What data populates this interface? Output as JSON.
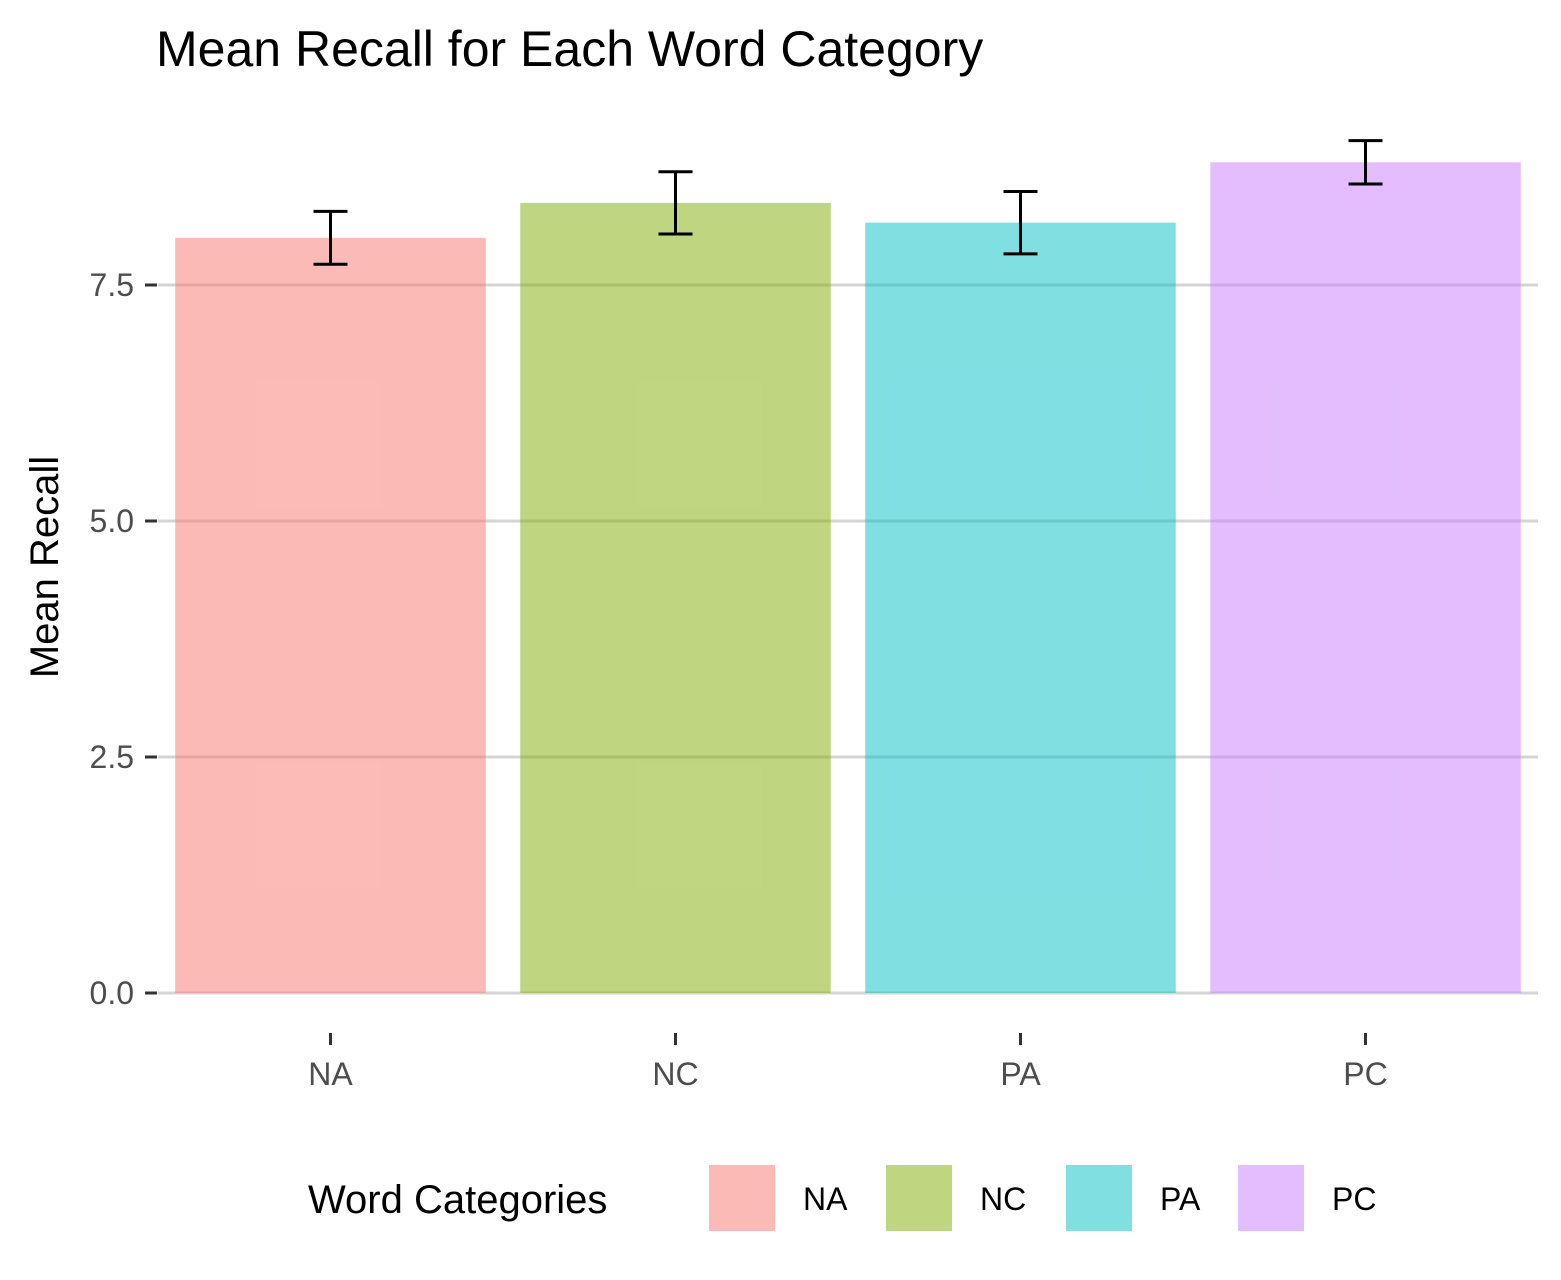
{
  "chart_data": {
    "type": "bar",
    "title": "Mean Recall for Each Word Category",
    "xlabel": "",
    "ylabel": "Mean Recall",
    "categories": [
      "NA",
      "NC",
      "PA",
      "PC"
    ],
    "values": [
      8.0,
      8.37,
      8.16,
      8.8
    ],
    "error": [
      0.28,
      0.33,
      0.33,
      0.23
    ],
    "colors": [
      "#F8766D",
      "#7CAE00",
      "#00BFC4",
      "#C77CFF"
    ],
    "bar_opacity": 0.5,
    "ylim": [
      0,
      9.3
    ],
    "yticks": [
      0,
      2.5,
      5,
      7.5
    ],
    "ytick_labels": [
      "0.0",
      "2.5",
      "5.0",
      "7.5"
    ],
    "grid": true,
    "legend": {
      "title": "Word Categories",
      "position": "bottom",
      "entries": [
        "NA",
        "NC",
        "PA",
        "PC"
      ]
    }
  }
}
